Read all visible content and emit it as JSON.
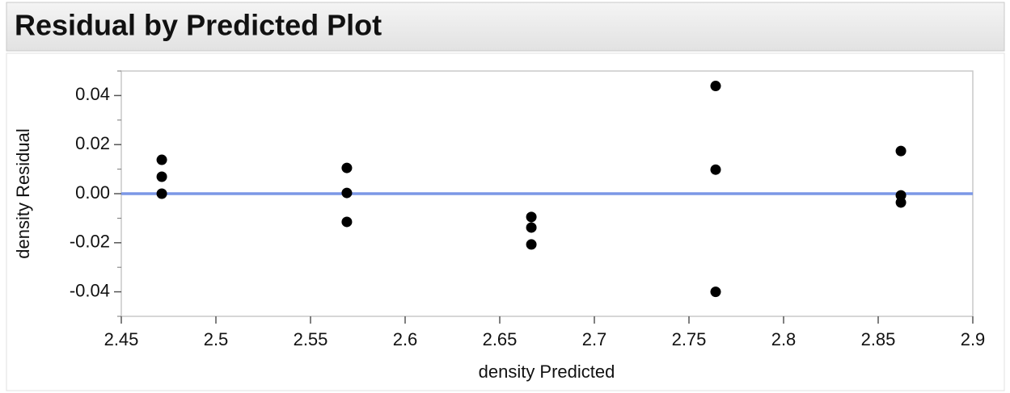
{
  "chart_data": {
    "type": "scatter",
    "title": "Residual by Predicted Plot",
    "x_label": "density Predicted",
    "y_label": "density Residual",
    "x": [
      2.4714,
      2.4714,
      2.4714,
      2.5692,
      2.5692,
      2.5692,
      2.6667,
      2.6667,
      2.6667,
      2.7641,
      2.7641,
      2.7641,
      2.862,
      2.862,
      2.862
    ],
    "values": [
      0.0138,
      0.0069,
      0,
      0.0105,
      0.0003,
      -0.0115,
      -0.0095,
      -0.0138,
      -0.0207,
      0.0439,
      0.0098,
      -0.04,
      0.0174,
      -0.0007,
      -0.0036
    ],
    "color": "#000000",
    "reference_line": 0,
    "reference_color": "#7b97e6",
    "xlim": [
      2.45,
      2.9
    ],
    "xticks": [
      2.45,
      2.5,
      2.55,
      2.6,
      2.65,
      2.7,
      2.75,
      2.8,
      2.85,
      2.9
    ],
    "ylim": [
      -0.05,
      0.05
    ],
    "yticks": [
      -0.04,
      -0.02,
      {
        "value": 0,
        "label": "0.00"
      },
      0.02,
      0.04
    ],
    "yminorticks": [
      -0.05,
      -0.03,
      -0.01,
      0.01,
      0.03,
      0.05
    ]
  }
}
